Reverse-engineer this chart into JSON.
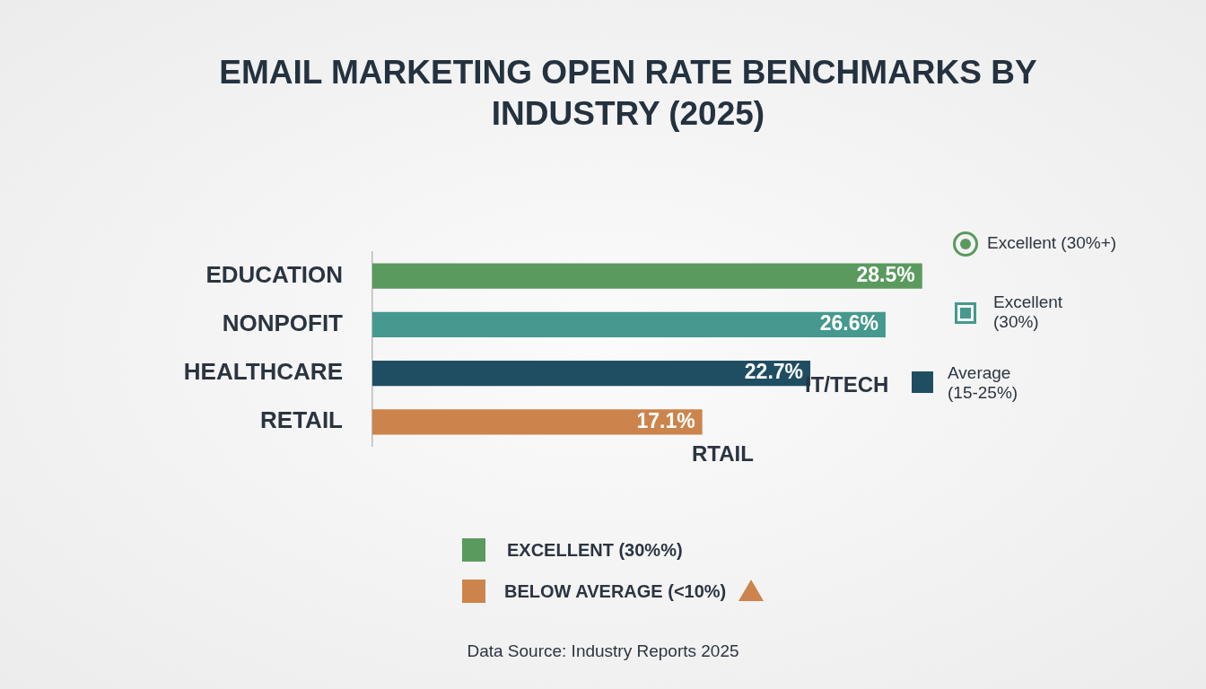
{
  "chart_data": {
    "type": "bar",
    "orientation": "horizontal",
    "title": "EMAIL MARKETING OPEN RATE BENCHMARKS BY INDUSTRY (2025)",
    "categories": [
      "EDUCATION",
      "NONPOFIT",
      "HEALTHCARE",
      "RETAIL"
    ],
    "values": [
      28.5,
      26.6,
      22.7,
      17.1
    ],
    "colors": [
      "#5a9a5e",
      "#45998e",
      "#1f4e63",
      "#cc844c"
    ],
    "value_labels": [
      "28.5%",
      "26.6%",
      "22.7%",
      "17.1%"
    ],
    "annotations": [
      "IT/TECH",
      "RTAIL",
      "Excellent (30%+)",
      "Excellent (30%)",
      "Average (15-25%)",
      "EXCELLENT (30%%)",
      "BELOW AVERAGE (<10%)",
      "Data Source: Industry Reports 2025"
    ]
  }
}
